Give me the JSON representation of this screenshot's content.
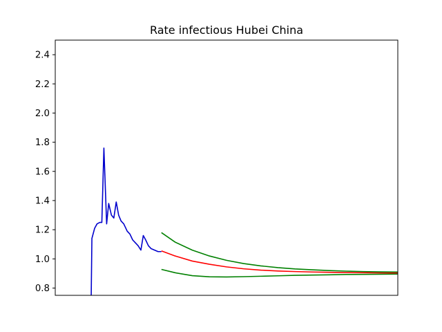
{
  "chart_data": {
    "type": "line",
    "title": "Rate infectious Hubei China",
    "xlabel": "",
    "ylabel": "",
    "xlim": [
      0,
      100
    ],
    "ylim": [
      0.75,
      2.5
    ],
    "x_ticks_visible": false,
    "y_ticks": [
      0.8,
      1.0,
      1.2,
      1.4,
      1.6,
      1.8,
      2.0,
      2.2,
      2.4
    ],
    "y_tick_labels": [
      "0.8",
      "1.0",
      "1.2",
      "1.4",
      "1.6",
      "1.8",
      "2.0",
      "2.2",
      "2.4"
    ],
    "grid": false,
    "legend": "none",
    "series": [
      {
        "color": "#0000cc",
        "x": [
          10.5,
          10.7,
          11.5,
          12.2,
          13.0,
          13.6,
          14.2,
          15.0,
          15.6,
          16.4,
          17.1,
          17.8,
          18.5,
          19.2,
          20.0,
          21.0,
          21.8,
          22.6,
          23.4,
          24.2,
          25.0,
          25.7,
          26.4,
          27.2,
          28.0,
          29.0,
          30.0,
          31.0
        ],
        "y": [
          0.75,
          1.14,
          1.21,
          1.24,
          1.25,
          1.25,
          1.76,
          1.24,
          1.38,
          1.3,
          1.28,
          1.39,
          1.3,
          1.26,
          1.24,
          1.19,
          1.17,
          1.13,
          1.11,
          1.09,
          1.06,
          1.16,
          1.13,
          1.09,
          1.07,
          1.06,
          1.05,
          1.05
        ]
      },
      {
        "color": "#ff0000",
        "x": [
          31,
          35,
          40,
          45,
          50,
          55,
          60,
          65,
          70,
          75,
          80,
          85,
          90,
          95,
          100
        ],
        "y": [
          1.055,
          1.02,
          0.985,
          0.963,
          0.945,
          0.932,
          0.923,
          0.917,
          0.913,
          0.91,
          0.908,
          0.906,
          0.905,
          0.904,
          0.903
        ]
      },
      {
        "color": "#008000",
        "x": [
          31,
          35,
          40,
          45,
          50,
          55,
          60,
          65,
          70,
          75,
          80,
          85,
          90,
          95,
          100
        ],
        "y": [
          1.18,
          1.115,
          1.06,
          1.02,
          0.99,
          0.968,
          0.952,
          0.94,
          0.931,
          0.925,
          0.92,
          0.916,
          0.913,
          0.911,
          0.91
        ]
      },
      {
        "color": "#008000",
        "x": [
          31,
          35,
          40,
          45,
          50,
          55,
          60,
          65,
          70,
          75,
          80,
          85,
          90,
          95,
          100
        ],
        "y": [
          0.928,
          0.905,
          0.885,
          0.877,
          0.876,
          0.878,
          0.881,
          0.884,
          0.887,
          0.889,
          0.891,
          0.893,
          0.894,
          0.895,
          0.896
        ]
      }
    ]
  }
}
